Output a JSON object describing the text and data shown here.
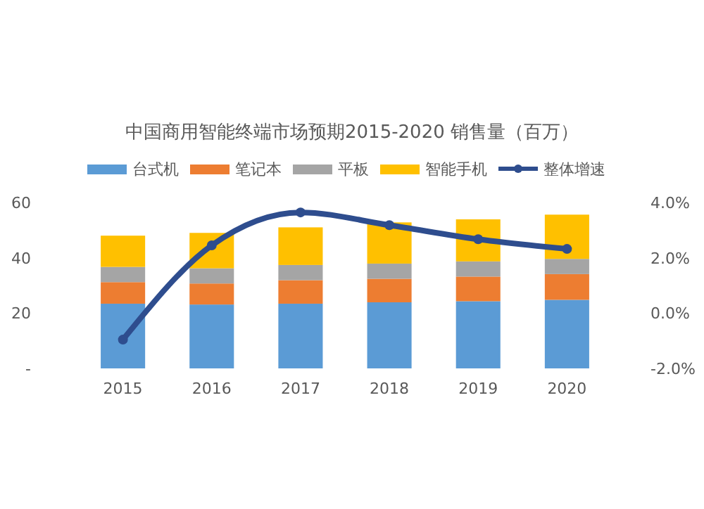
{
  "chart_data": {
    "type": "bar",
    "title": "中国商用智能终端市场预期2015-2020 销售量（百万）",
    "categories": [
      "2015",
      "2016",
      "2017",
      "2018",
      "2019",
      "2020"
    ],
    "stacked": true,
    "legend": "top",
    "marker": "circle",
    "series": [
      {
        "name": "台式机",
        "color": "#5b9bd5",
        "values": [
          23.4,
          23.1,
          23.4,
          23.9,
          24.3,
          24.8
        ]
      },
      {
        "name": "笔记本",
        "color": "#ed7d31",
        "values": [
          7.8,
          7.6,
          8.5,
          8.5,
          8.9,
          9.3
        ]
      },
      {
        "name": "平板",
        "color": "#a5a5a5",
        "values": [
          5.5,
          5.5,
          5.5,
          5.5,
          5.5,
          5.5
        ]
      },
      {
        "name": "智能手机",
        "color": "#ffc000",
        "values": [
          11.3,
          12.8,
          13.6,
          14.9,
          15.2,
          16.0
        ]
      },
      {
        "name": "整体增速",
        "type": "line",
        "axis": "y2",
        "color": "#2e4d8e",
        "values": [
          -0.96,
          2.45,
          3.64,
          3.18,
          2.67,
          2.32
        ]
      }
    ],
    "ylim": [
      0,
      60
    ],
    "yticks": [
      {
        "value": 0,
        "label": "-"
      },
      20,
      40,
      60
    ],
    "y2lim": [
      -2,
      4
    ],
    "y2ticks": [
      {
        "value": -2,
        "label": "-2.0%"
      },
      {
        "value": 0,
        "label": "0.0%"
      },
      {
        "value": 2,
        "label": "2.0%"
      },
      {
        "value": 4,
        "label": "4.0%"
      }
    ]
  }
}
